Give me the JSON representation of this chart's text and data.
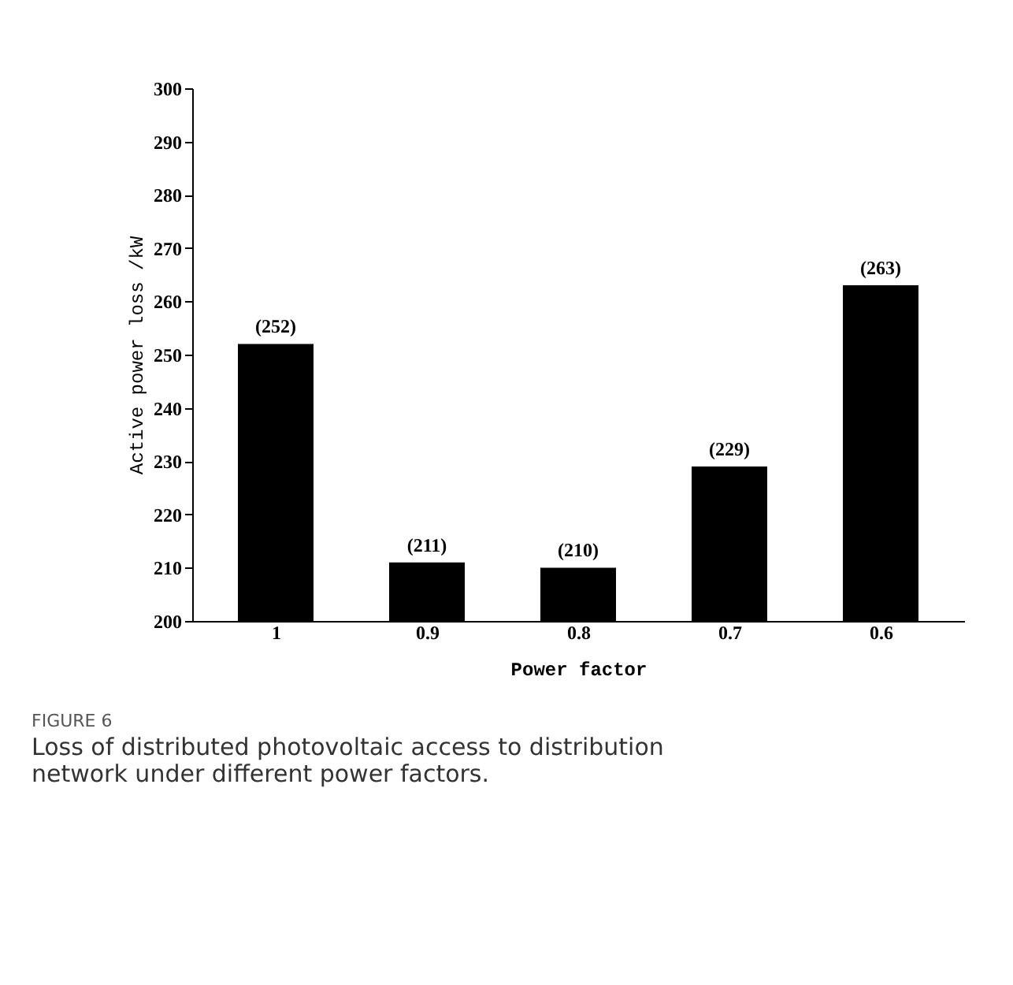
{
  "chart_data": {
    "type": "bar",
    "xlabel": "Power factor",
    "ylabel": "Active power loss /kW",
    "categories": [
      "1",
      "0.9",
      "0.8",
      "0.7",
      "0.6"
    ],
    "values": [
      252,
      211,
      210,
      229,
      263
    ],
    "value_labels": [
      "(252)",
      "(211)",
      "(210)",
      "(229)",
      "(263)"
    ],
    "color": "#000000",
    "ylim": [
      200,
      300
    ],
    "yticks": [
      200,
      210,
      220,
      230,
      240,
      250,
      260,
      270,
      280,
      290,
      300
    ],
    "grid": false,
    "legend": false,
    "annotations": [
      "FIGURE 6",
      "Loss of distributed photovoltaic access to distribution network under different power factors."
    ]
  }
}
